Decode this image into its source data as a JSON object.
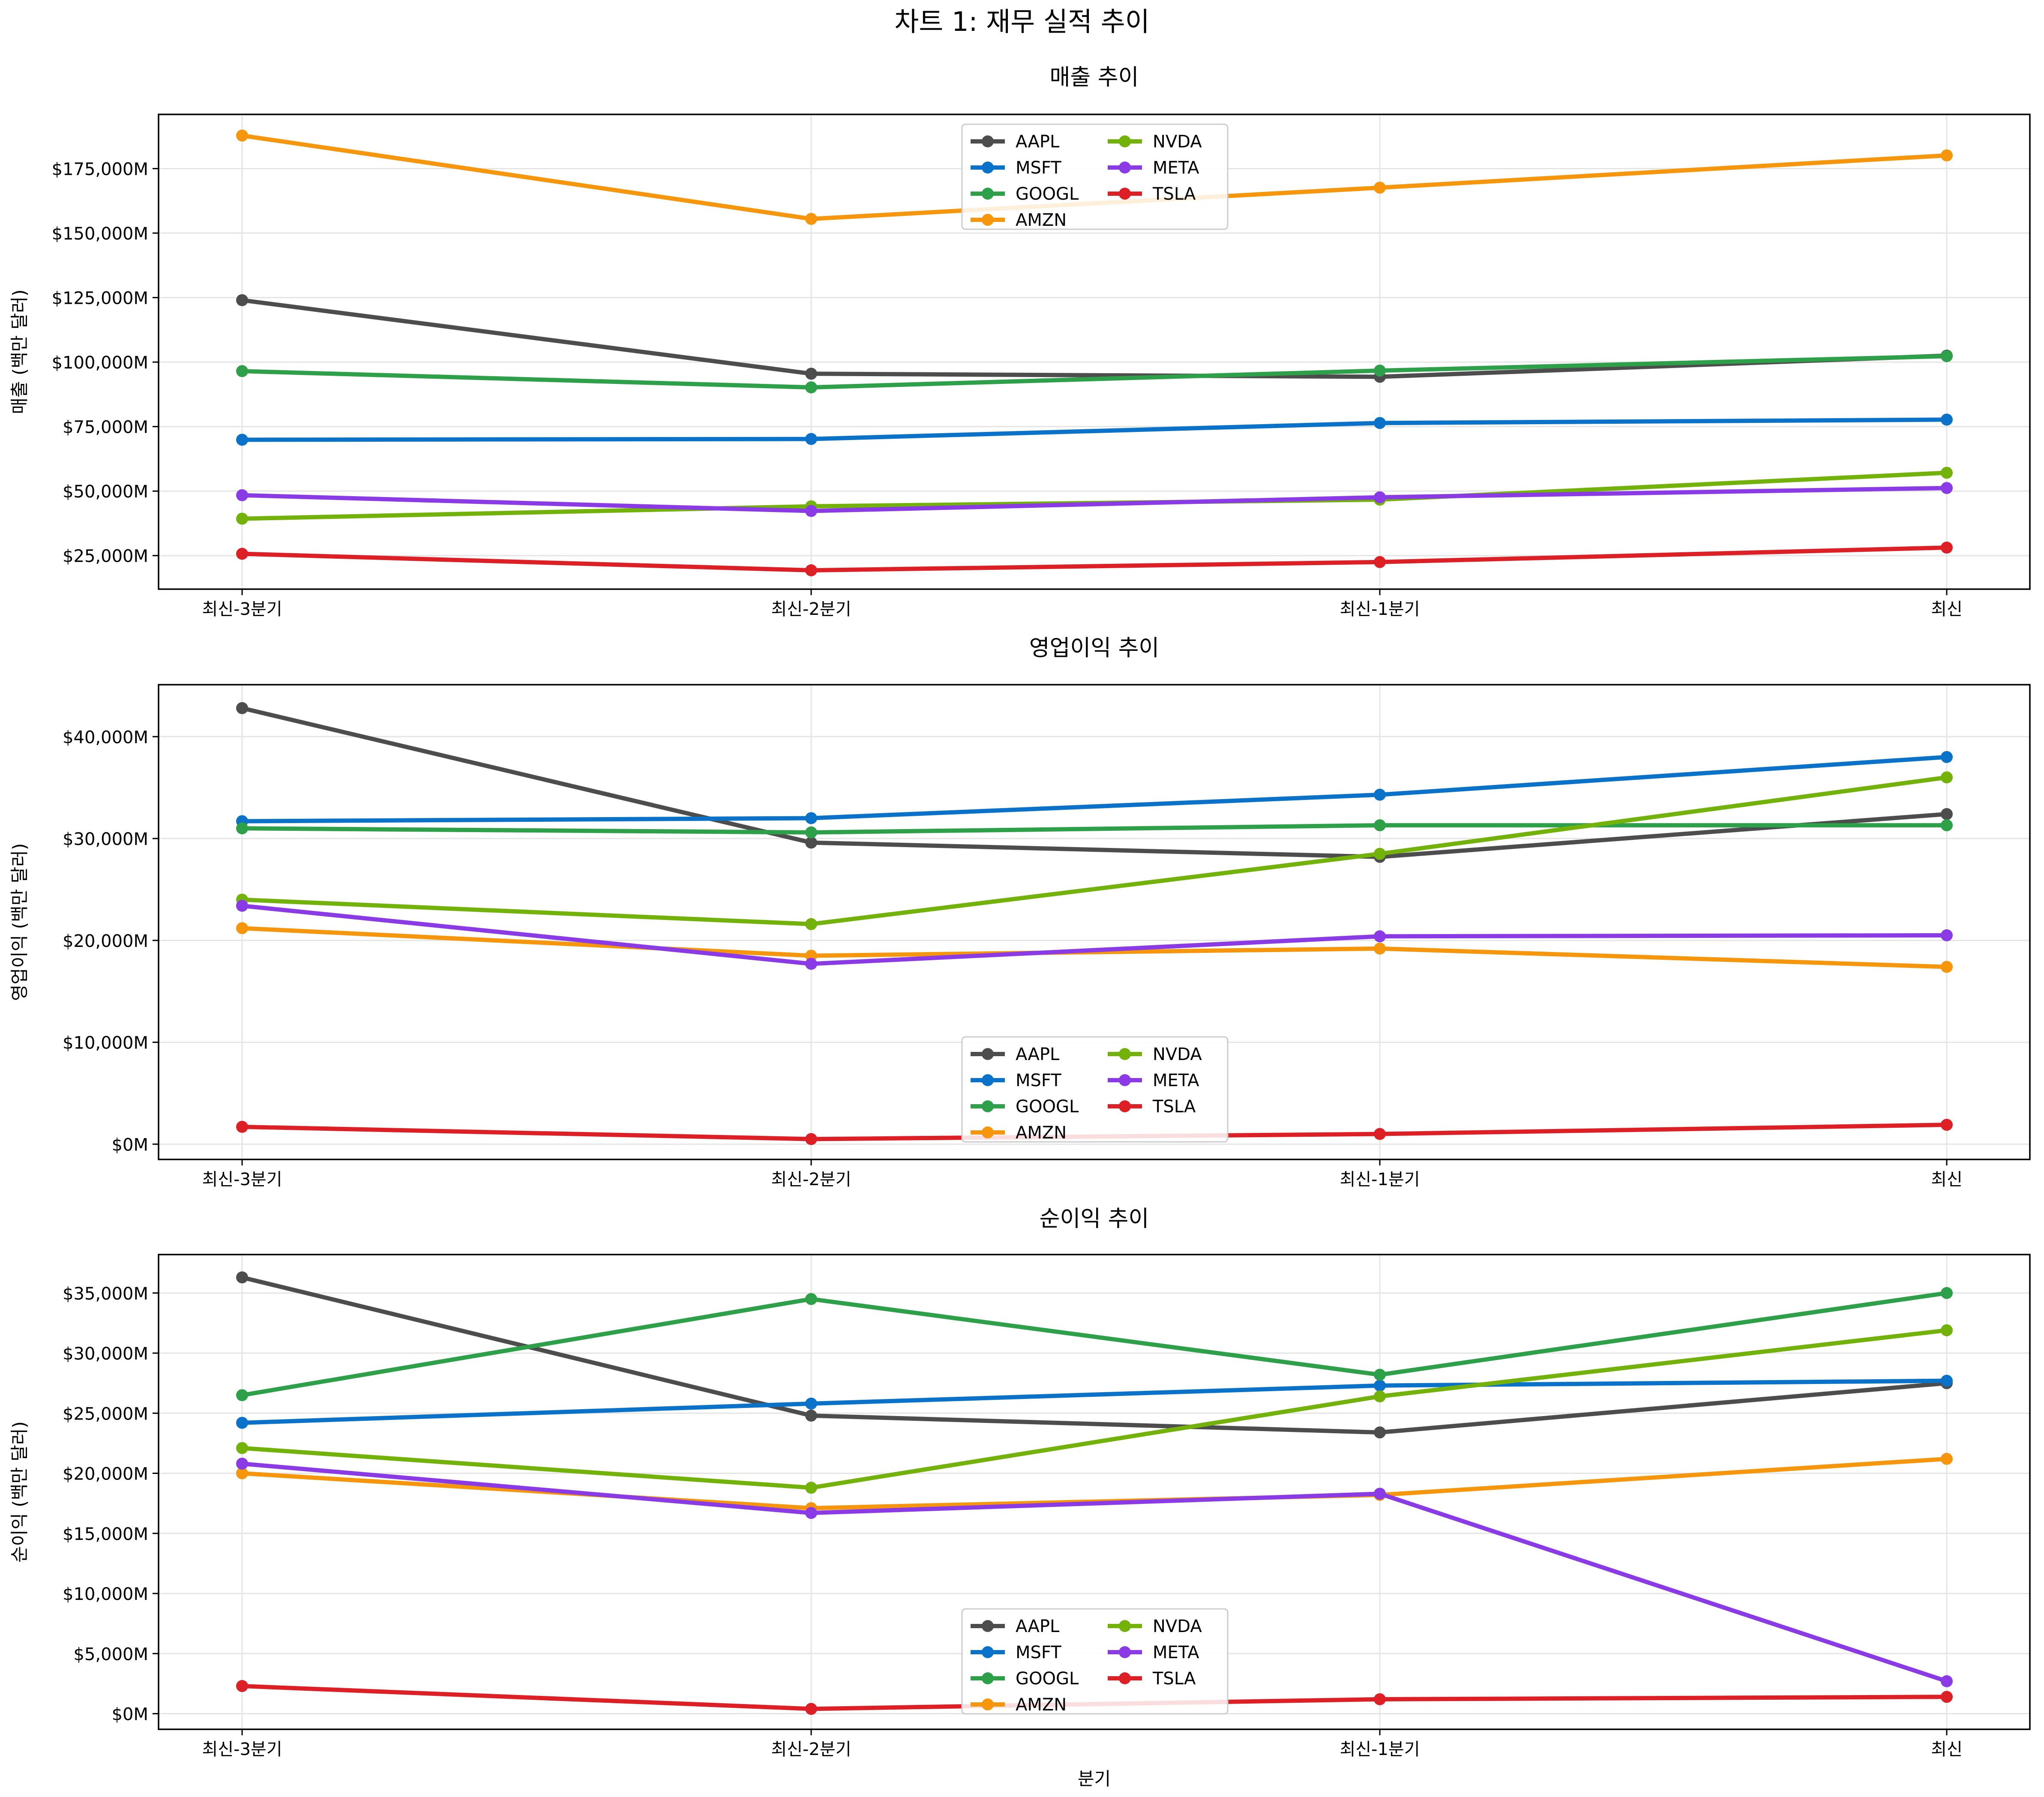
{
  "figure": {
    "suptitle": "차트 1: 재무 실적 추이"
  },
  "colors": {
    "AAPL": "#4d4d4d",
    "MSFT": "#0a72c8",
    "GOOGL": "#2ea04a",
    "AMZN": "#f5960d",
    "NVDA": "#73b10b",
    "META": "#8a3be6",
    "TSLA": "#dd2026",
    "grid": "#e5e5e5",
    "axis": "#000000"
  },
  "chart_data": [
    {
      "type": "line",
      "title": "매출 추이",
      "xlabel": "",
      "ylabel": "매출 (백만 달러)",
      "categories": [
        "최신-3분기",
        "최신-2분기",
        "최신-1분기",
        "최신"
      ],
      "ylim": [
        12000,
        196000
      ],
      "yticks": [
        25000,
        50000,
        75000,
        100000,
        125000,
        150000,
        175000
      ],
      "ytick_labels": [
        "$25,000M",
        "$50,000M",
        "$75,000M",
        "$100,000M",
        "$125,000M",
        "$150,000M",
        "$175,000M"
      ],
      "legend_position": "upper-center",
      "grid": true,
      "series": [
        {
          "name": "AAPL",
          "values": [
            124000,
            95500,
            94300,
            102500
          ]
        },
        {
          "name": "MSFT",
          "values": [
            69900,
            70200,
            76400,
            77700
          ]
        },
        {
          "name": "GOOGL",
          "values": [
            96500,
            90200,
            96700,
            102300
          ]
        },
        {
          "name": "AMZN",
          "values": [
            187800,
            155500,
            167600,
            180100
          ]
        },
        {
          "name": "NVDA",
          "values": [
            39300,
            44100,
            46700,
            57100
          ]
        },
        {
          "name": "META",
          "values": [
            48400,
            42300,
            47600,
            51200
          ]
        },
        {
          "name": "TSLA",
          "values": [
            25700,
            19300,
            22500,
            28100
          ]
        }
      ]
    },
    {
      "type": "line",
      "title": "영업이익 추이",
      "xlabel": "",
      "ylabel": "영업이익 (백만 달러)",
      "categories": [
        "최신-3분기",
        "최신-2분기",
        "최신-1분기",
        "최신"
      ],
      "ylim": [
        -1500,
        45100
      ],
      "yticks": [
        0,
        10000,
        20000,
        30000,
        40000
      ],
      "ytick_labels": [
        "$0M",
        "$10,000M",
        "$20,000M",
        "$30,000M",
        "$40,000M"
      ],
      "legend_position": "lower-center",
      "grid": true,
      "series": [
        {
          "name": "AAPL",
          "values": [
            42800,
            29600,
            28200,
            32400
          ]
        },
        {
          "name": "MSFT",
          "values": [
            31700,
            32000,
            34300,
            38000
          ]
        },
        {
          "name": "GOOGL",
          "values": [
            31000,
            30600,
            31300,
            31300
          ]
        },
        {
          "name": "AMZN",
          "values": [
            21200,
            18500,
            19200,
            17400
          ]
        },
        {
          "name": "NVDA",
          "values": [
            24000,
            21600,
            28500,
            36000
          ]
        },
        {
          "name": "META",
          "values": [
            23400,
            17700,
            20400,
            20500
          ]
        },
        {
          "name": "TSLA",
          "values": [
            1700,
            500,
            1000,
            1900
          ]
        }
      ]
    },
    {
      "type": "line",
      "title": "순이익 추이",
      "xlabel": "분기",
      "ylabel": "순이익 (백만 달러)",
      "categories": [
        "최신-3분기",
        "최신-2분기",
        "최신-1분기",
        "최신"
      ],
      "ylim": [
        -1300,
        38200
      ],
      "yticks": [
        0,
        5000,
        10000,
        15000,
        20000,
        25000,
        30000,
        35000
      ],
      "ytick_labels": [
        "$0M",
        "$5,000M",
        "$10,000M",
        "$15,000M",
        "$20,000M",
        "$25,000M",
        "$30,000M",
        "$35,000M"
      ],
      "legend_position": "lower-center",
      "grid": true,
      "series": [
        {
          "name": "AAPL",
          "values": [
            36300,
            24800,
            23400,
            27500
          ]
        },
        {
          "name": "MSFT",
          "values": [
            24200,
            25800,
            27300,
            27700
          ]
        },
        {
          "name": "GOOGL",
          "values": [
            26500,
            34500,
            28200,
            35000
          ]
        },
        {
          "name": "AMZN",
          "values": [
            20000,
            17100,
            18200,
            21200
          ]
        },
        {
          "name": "NVDA",
          "values": [
            22100,
            18800,
            26400,
            31900
          ]
        },
        {
          "name": "META",
          "values": [
            20800,
            16700,
            18300,
            2700
          ]
        },
        {
          "name": "TSLA",
          "values": [
            2300,
            400,
            1200,
            1400
          ]
        }
      ]
    }
  ],
  "legend_order": [
    "AAPL",
    "NVDA",
    "MSFT",
    "META",
    "GOOGL",
    "TSLA",
    "AMZN"
  ]
}
